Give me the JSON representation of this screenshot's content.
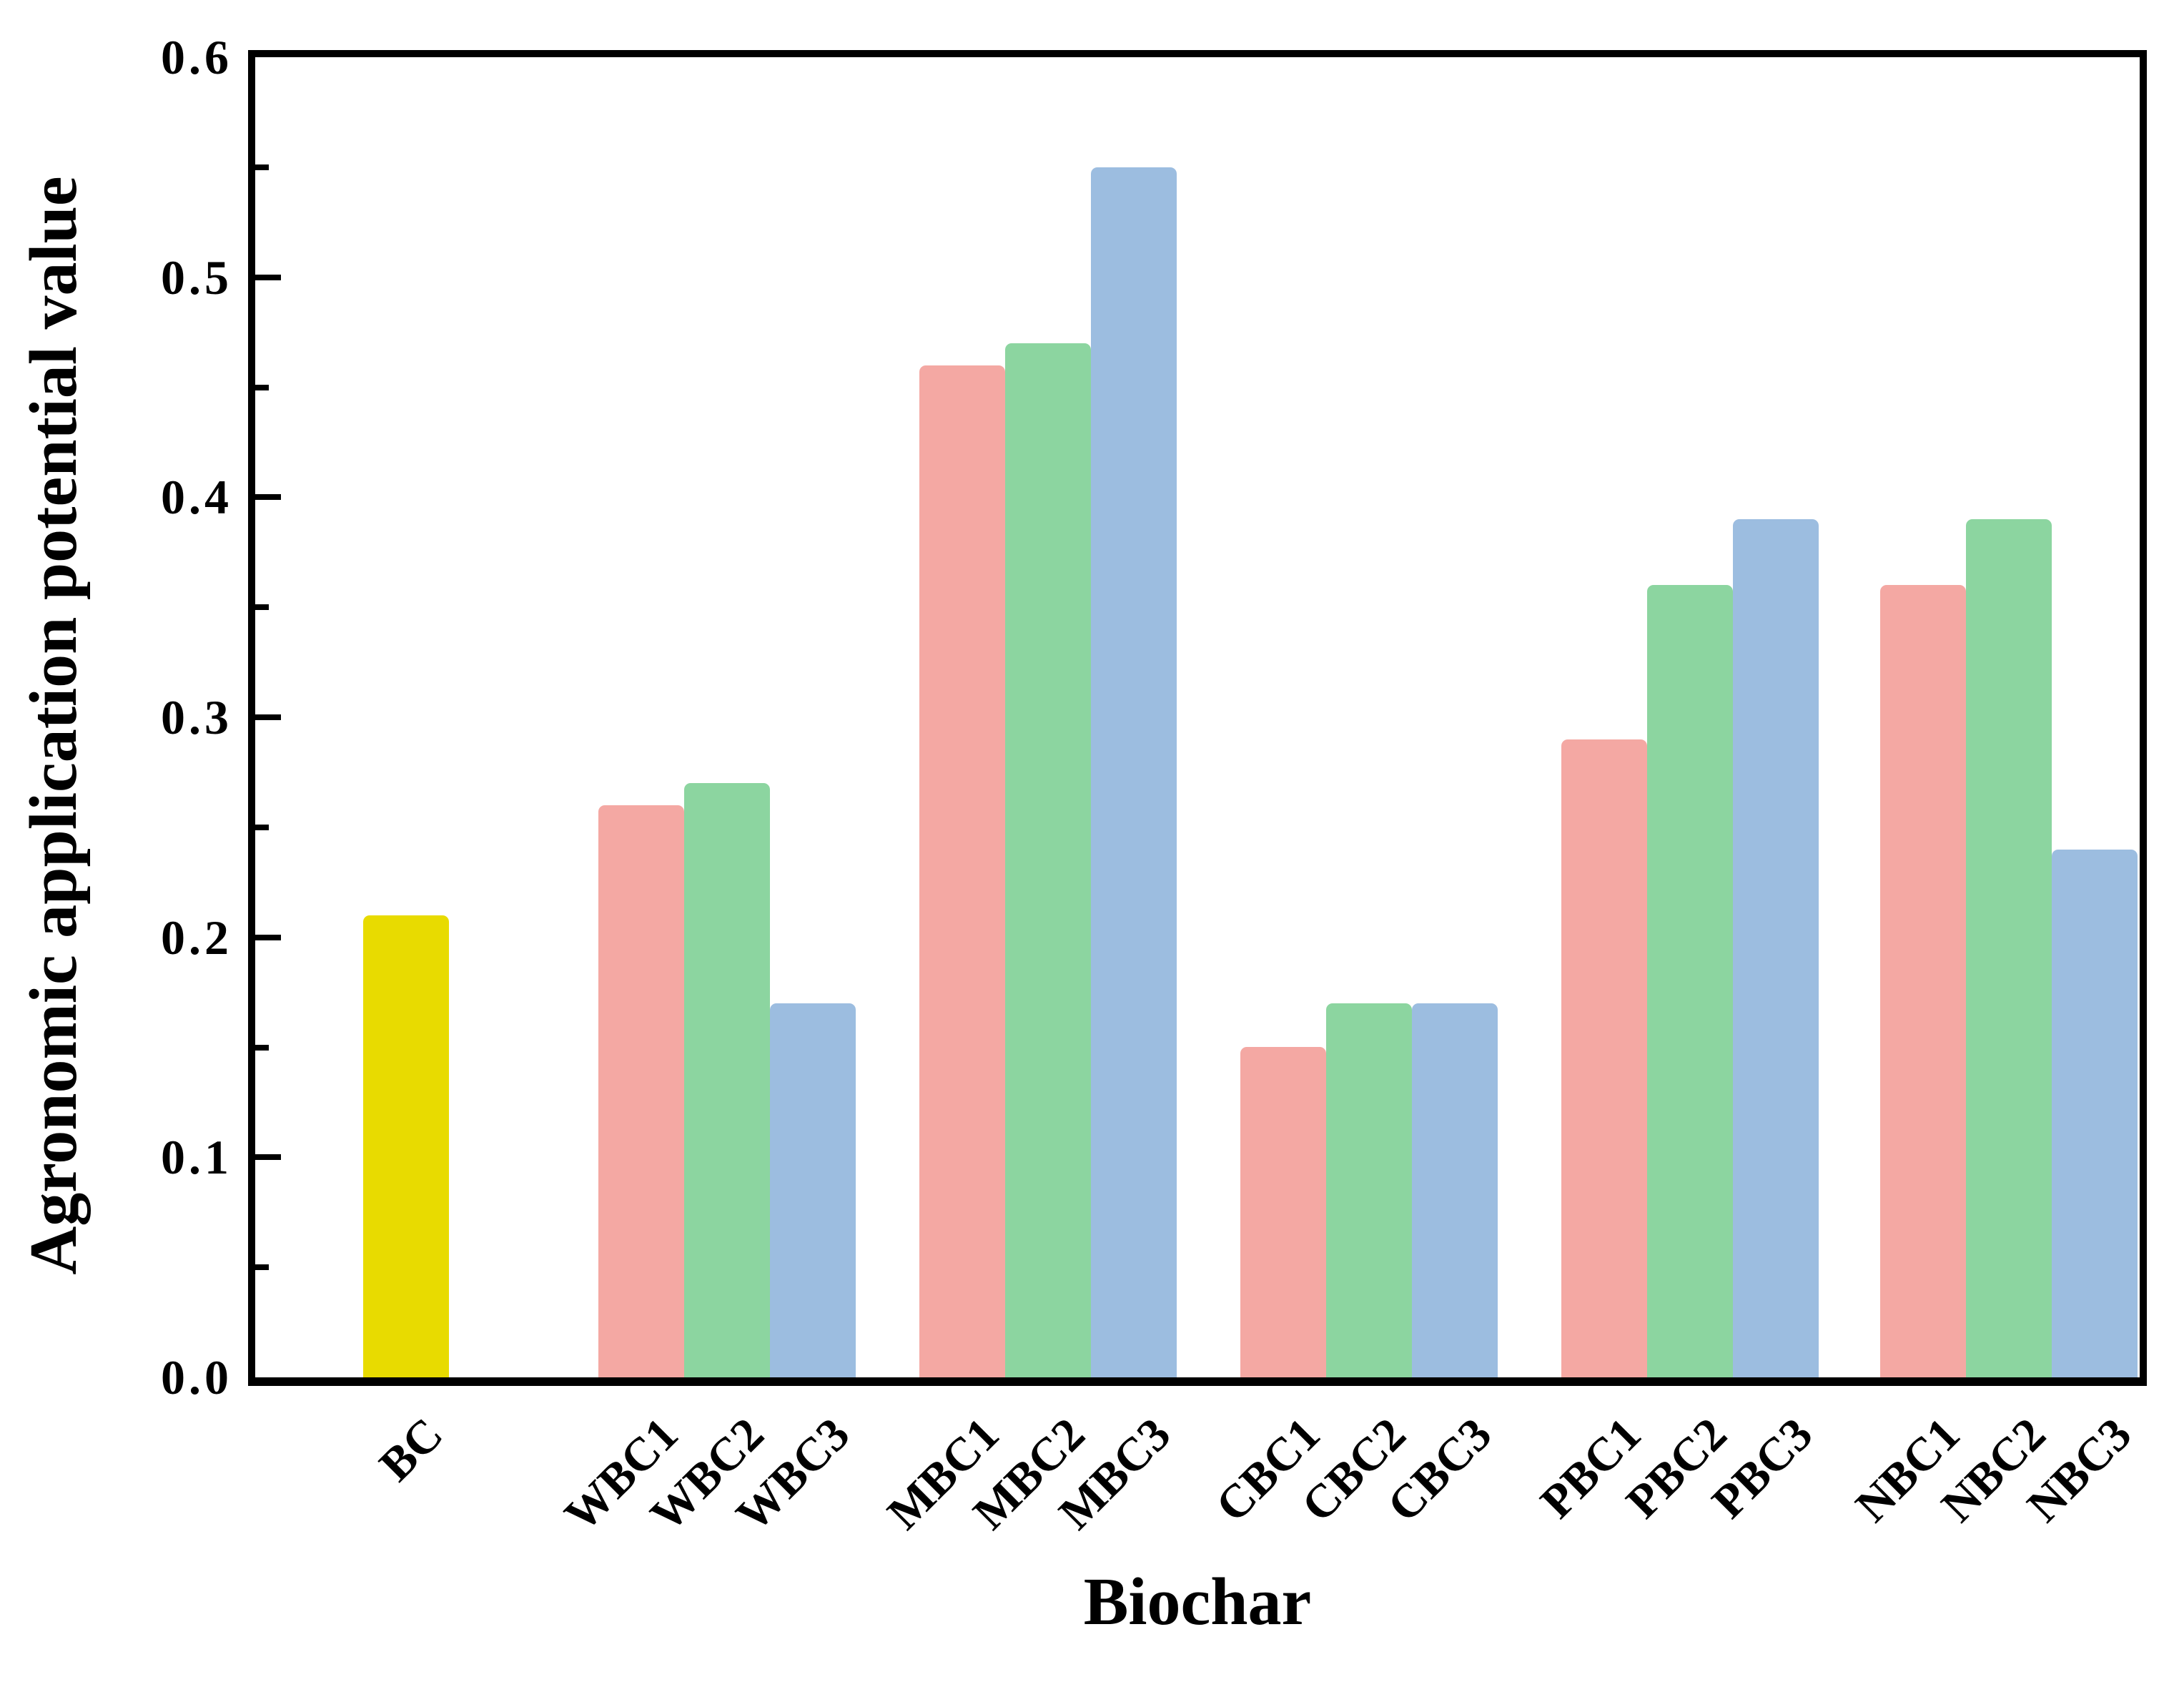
{
  "figure": {
    "background": "#ffffff",
    "frame_color": "#000000",
    "text_color": "#000000"
  },
  "chart_data": {
    "type": "bar",
    "title": "",
    "xlabel": "Biochar",
    "ylabel": "Agronomic application potential value",
    "ylim": [
      0,
      0.6
    ],
    "ytick_values": [
      0.0,
      0.1,
      0.2,
      0.3,
      0.4,
      0.5,
      0.6
    ],
    "ytick_labels": [
      "0.0",
      "0.1",
      "0.2",
      "0.3",
      "0.4",
      "0.5",
      "0.6"
    ],
    "yminor_step": 0.05,
    "grid": false,
    "legend": "none",
    "tick_direction": "in",
    "bar_colors": {
      "pristine": "#E8DB00",
      "series1": "#F4A8A3",
      "series2": "#8CD5A0",
      "series3": "#9CBDE0"
    },
    "categories": [
      "BC",
      "WBC1",
      "WBC2",
      "WBC3",
      "MBC1",
      "MBC2",
      "MBC3",
      "CBC1",
      "CBC2",
      "CBC3",
      "PBC1",
      "PBC2",
      "PBC3",
      "NBC1",
      "NBC2",
      "NBC3"
    ],
    "values": [
      0.21,
      0.26,
      0.27,
      0.17,
      0.46,
      0.47,
      0.55,
      0.15,
      0.17,
      0.17,
      0.29,
      0.36,
      0.39,
      0.36,
      0.39,
      0.24
    ],
    "groups": [
      {
        "name": "BC",
        "bars": [
          {
            "label": "BC",
            "value": 0.21,
            "color": "#E8DB00"
          }
        ]
      },
      {
        "name": "WBC",
        "bars": [
          {
            "label": "WBC1",
            "value": 0.26,
            "color": "#F4A8A3"
          },
          {
            "label": "WBC2",
            "value": 0.27,
            "color": "#8CD5A0"
          },
          {
            "label": "WBC3",
            "value": 0.17,
            "color": "#9CBDE0"
          }
        ]
      },
      {
        "name": "MBC",
        "bars": [
          {
            "label": "MBC1",
            "value": 0.46,
            "color": "#F4A8A3"
          },
          {
            "label": "MBC2",
            "value": 0.47,
            "color": "#8CD5A0"
          },
          {
            "label": "MBC3",
            "value": 0.55,
            "color": "#9CBDE0"
          }
        ]
      },
      {
        "name": "CBC",
        "bars": [
          {
            "label": "CBC1",
            "value": 0.15,
            "color": "#F4A8A3"
          },
          {
            "label": "CBC2",
            "value": 0.17,
            "color": "#8CD5A0"
          },
          {
            "label": "CBC3",
            "value": 0.17,
            "color": "#9CBDE0"
          }
        ]
      },
      {
        "name": "PBC",
        "bars": [
          {
            "label": "PBC1",
            "value": 0.29,
            "color": "#F4A8A3"
          },
          {
            "label": "PBC2",
            "value": 0.36,
            "color": "#8CD5A0"
          },
          {
            "label": "PBC3",
            "value": 0.39,
            "color": "#9CBDE0"
          }
        ]
      },
      {
        "name": "NBC",
        "bars": [
          {
            "label": "NBC1",
            "value": 0.36,
            "color": "#F4A8A3"
          },
          {
            "label": "NBC2",
            "value": 0.39,
            "color": "#8CD5A0"
          },
          {
            "label": "NBC3",
            "value": 0.24,
            "color": "#9CBDE0"
          }
        ]
      }
    ]
  }
}
